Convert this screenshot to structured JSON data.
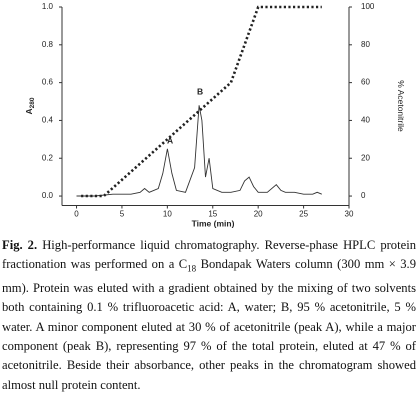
{
  "chart_data": {
    "type": "line",
    "xlabel": "Time (min)",
    "ylabel": "A",
    "ylabel_sub": "280",
    "y2label": "% Acetonitrile",
    "xlim": [
      -1.6,
      30
    ],
    "xticks": [
      0,
      5,
      10,
      15,
      20,
      25,
      30
    ],
    "ylim": [
      -0.05,
      1.0
    ],
    "yticks": [
      {
        "value": 0,
        "label": "0.0"
      },
      {
        "value": 0.2,
        "label": "0.2"
      },
      {
        "value": 0.4,
        "label": "0.4"
      },
      {
        "value": 0.6,
        "label": "0.6"
      },
      {
        "value": 0.8,
        "label": "0.8"
      },
      {
        "value": 1.0,
        "label": "1.0"
      }
    ],
    "y2lim": [
      -5,
      100
    ],
    "y2ticks": [
      0,
      20,
      40,
      60,
      80,
      100
    ],
    "annotations": [
      "A",
      "B"
    ],
    "series": [
      {
        "color": "#333333",
        "x": [
          0,
          2,
          4,
          6,
          7,
          7.5,
          8,
          9,
          9.5,
          10,
          10.5,
          11,
          12,
          13,
          13.5,
          13.8,
          14.2,
          14.6,
          15,
          16,
          17,
          18,
          18.5,
          19,
          19.5,
          20,
          21,
          22,
          22.5,
          23,
          24,
          25,
          26,
          26.5,
          27
        ],
        "values": [
          0,
          0,
          0.01,
          0.01,
          0.02,
          0.04,
          0.02,
          0.04,
          0.12,
          0.25,
          0.12,
          0.03,
          0.02,
          0.15,
          0.48,
          0.4,
          0.1,
          0.2,
          0.04,
          0.02,
          0.02,
          0.03,
          0.08,
          0.1,
          0.05,
          0.02,
          0.02,
          0.06,
          0.03,
          0.02,
          0.02,
          0.01,
          0.01,
          0.02,
          0.01
        ]
      },
      {
        "color": "#222222",
        "axis": "y2",
        "x": [
          0.5,
          3,
          17,
          20,
          27
        ],
        "values": [
          0,
          0,
          60,
          100,
          100
        ]
      }
    ]
  },
  "caption": {
    "label": "Fig. 2.",
    "text": " High-performance liquid chromatography. Reverse-phase HPLC protein fractionation was performed on a C",
    "sub": "18",
    "rest": " Bondapak Waters column (300 mm × 3.9 mm). Protein was eluted with a gradient obtained by the mixing of two solvents both containing 0.1 % trifluoroacetic acid: A, water; B, 95 % acetonitrile, 5 % water. A minor component eluted at 30 % of acetonitrile (peak A), while a major component (peak B), representing 97 % of the total protein, eluted at 47 % of acetonitrile. Beside their absorbance, other peaks in the chromatogram showed almost null protein content."
  }
}
